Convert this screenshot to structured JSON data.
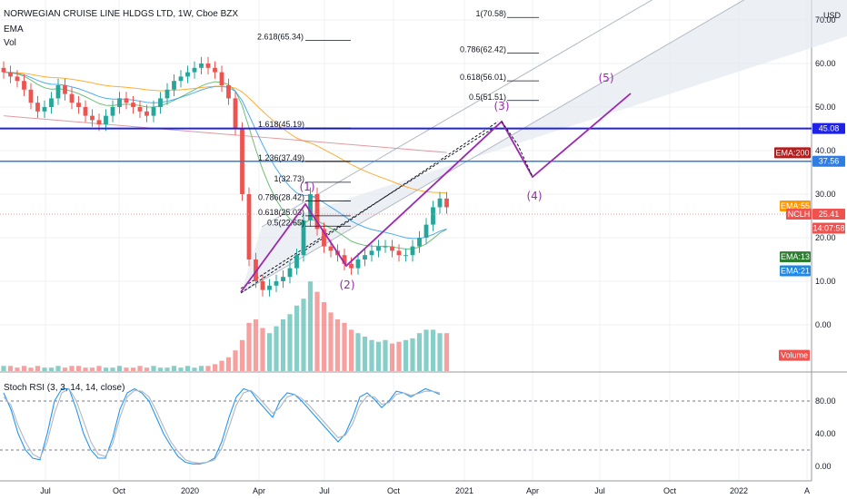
{
  "header": {
    "title": "NORWEGIAN CRUISE LINE HLDGS LTD, 1W, Cboe BZX",
    "ema_label": "EMA",
    "vol_label": "Vol",
    "stoch_label": "Stoch RSI (3, 3, 14, 14, close)"
  },
  "colors": {
    "up": "#26a69a",
    "down": "#ef5350",
    "wave": "#9c27b0",
    "hline": "#1e22e6",
    "hline2": "#2f7de1",
    "channel": "#cfd6e2",
    "k_line": "#2196f3",
    "d_line": "#b0b6c2"
  },
  "chart_data": [
    {
      "type": "candlestick",
      "title": "NORWEGIAN CRUISE LINE HLDGS LTD, 1W, Cboe BZX",
      "x_ticks": [
        "Jul",
        "Oct",
        "2020",
        "Apr",
        "Jul",
        "Oct",
        "2021",
        "Apr",
        "Jul",
        "Oct",
        "2022",
        "A"
      ],
      "y_ticks": [
        0,
        10,
        20,
        30,
        40,
        50,
        60,
        70
      ],
      "y_unit": "USD",
      "ylim": [
        -10,
        73
      ],
      "horizontal_levels": [
        45.08,
        37.56
      ],
      "fib_levels": [
        {
          "label": "2.618(65.34)",
          "value": 65.34
        },
        {
          "label": "1.618(45.19)",
          "value": 45.19
        },
        {
          "label": "1.236(37.49)",
          "value": 37.49
        },
        {
          "label": "1(32.73)",
          "value": 32.73
        },
        {
          "label": "0.786(28.42)",
          "value": 28.42
        },
        {
          "label": "0.618(25.03)",
          "value": 25.03
        },
        {
          "label": "0.5(22.65)",
          "value": 22.65
        },
        {
          "label": "1(70.58)",
          "value": 70.58
        },
        {
          "label": "0.786(62.42)",
          "value": 62.42
        },
        {
          "label": "0.618(56.01)",
          "value": 56.01
        },
        {
          "label": "0.5(51.51)",
          "value": 51.51
        }
      ],
      "wave_labels": [
        "(1)",
        "(2)",
        "(3)",
        "(4)",
        "(5)"
      ],
      "price_badges": [
        {
          "label": "45.08",
          "value": 45.08
        },
        {
          "label": "EMA:200",
          "value": 39.5
        },
        {
          "label": "37.56",
          "value": 37.56
        },
        {
          "label": "EMA:55",
          "value": 27.3
        },
        {
          "label": "NCLH",
          "value": 25.41
        },
        {
          "label": "25.41",
          "value": 25.41
        },
        {
          "label": "14:07:58",
          "value": 22.2
        },
        {
          "label": "EMA:13",
          "value": 15.6
        },
        {
          "label": "EMA:21",
          "value": 12.4
        },
        {
          "label": "Volume",
          "value": -7
        }
      ],
      "price_closes": [
        58,
        57,
        56,
        54,
        51,
        49,
        50,
        52,
        55,
        53,
        51,
        50,
        48,
        47,
        46,
        48,
        50,
        52,
        51,
        50,
        49,
        48,
        50,
        52,
        54,
        56,
        57,
        58,
        59,
        60,
        59,
        58,
        55,
        52,
        45,
        30,
        15,
        10,
        8,
        9,
        10,
        11,
        13,
        16,
        24,
        30,
        22,
        18,
        17,
        16,
        14,
        13,
        15,
        16,
        17,
        18,
        18,
        17,
        16,
        16,
        18,
        20,
        23,
        27,
        29,
        27
      ],
      "volume": [
        3,
        3,
        2,
        3,
        2,
        3,
        2,
        2,
        3,
        2,
        3,
        3,
        2,
        2,
        3,
        2,
        2,
        3,
        2,
        2,
        3,
        2,
        3,
        2,
        2,
        3,
        2,
        3,
        2,
        3,
        3,
        4,
        6,
        8,
        12,
        18,
        28,
        30,
        25,
        22,
        26,
        30,
        33,
        38,
        42,
        52,
        46,
        40,
        34,
        30,
        28,
        24,
        22,
        20,
        18,
        17,
        18,
        16,
        17,
        18,
        19,
        22,
        24,
        24,
        22,
        22
      ]
    },
    {
      "type": "line",
      "title": "Stoch RSI (3, 3, 14, 14, close)",
      "y_ticks": [
        0,
        40,
        80
      ],
      "ylim": [
        -8,
        100
      ],
      "reference_levels": [
        20,
        80
      ],
      "series": [
        {
          "name": "K",
          "values": [
            90,
            70,
            40,
            20,
            10,
            8,
            40,
            80,
            95,
            95,
            70,
            40,
            20,
            10,
            10,
            35,
            70,
            90,
            95,
            90,
            80,
            60,
            40,
            25,
            12,
            5,
            3,
            3,
            5,
            10,
            30,
            60,
            85,
            95,
            92,
            80,
            70,
            60,
            80,
            90,
            88,
            80,
            70,
            60,
            50,
            40,
            30,
            40,
            60,
            85,
            90,
            82,
            72,
            80,
            92,
            90,
            85,
            90,
            95,
            92,
            88
          ]
        },
        {
          "name": "D",
          "values": [
            85,
            75,
            50,
            30,
            15,
            10,
            30,
            65,
            90,
            95,
            80,
            55,
            30,
            15,
            12,
            28,
            60,
            85,
            93,
            92,
            85,
            68,
            48,
            30,
            18,
            8,
            5,
            4,
            5,
            8,
            22,
            48,
            75,
            90,
            93,
            85,
            75,
            65,
            72,
            85,
            88,
            83,
            75,
            65,
            55,
            45,
            35,
            38,
            52,
            75,
            86,
            85,
            76,
            78,
            88,
            90,
            87,
            89,
            92,
            92,
            90
          ]
        }
      ]
    }
  ]
}
